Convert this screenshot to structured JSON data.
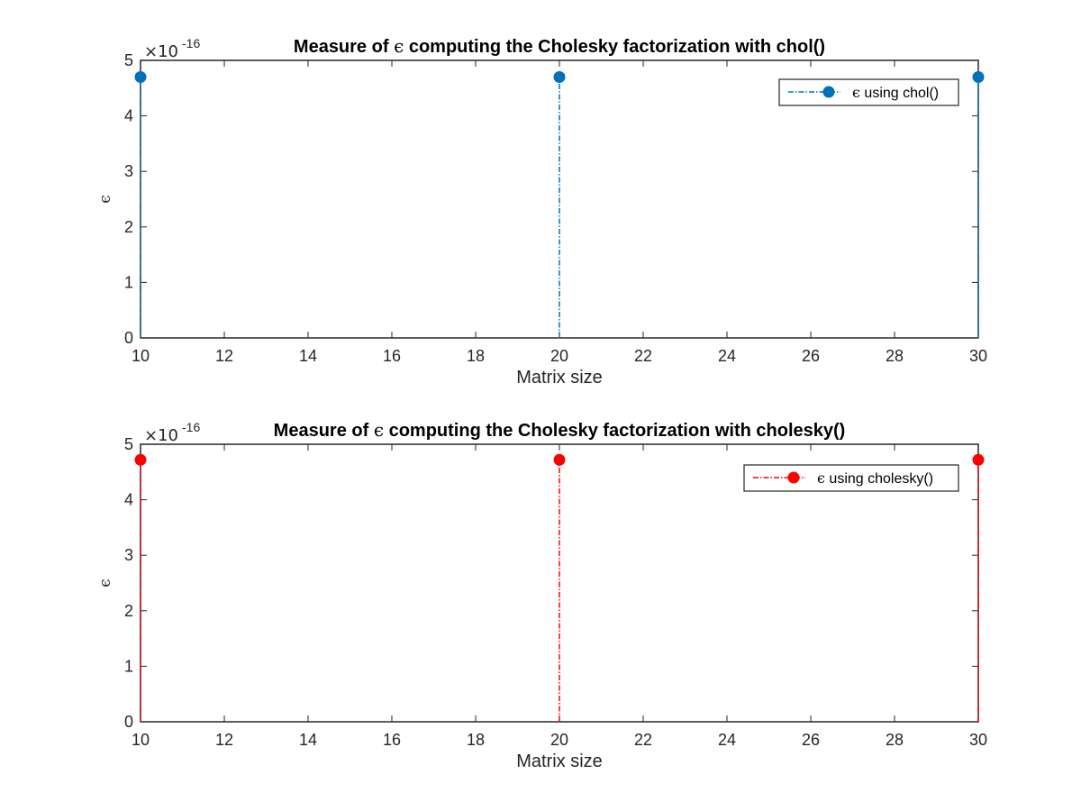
{
  "chart_data": [
    {
      "type": "stem",
      "title_prefix": "Measure of",
      "title_symbol": "ϵ",
      "title_suffix": "computing the Cholesky factorization with chol()",
      "xlabel": "Matrix size",
      "ylabel": "ϵ",
      "xlim": [
        10,
        30
      ],
      "ylim": [
        0,
        5
      ],
      "xticks": [
        10,
        12,
        14,
        16,
        18,
        20,
        22,
        24,
        26,
        28,
        30
      ],
      "yticks": [
        0,
        1,
        2,
        3,
        4,
        5
      ],
      "exponent_base": "×10",
      "exponent_power": "-16",
      "grid": false,
      "legend_position": "top-right",
      "series": [
        {
          "legend_symbol": "ϵ",
          "legend_text": "using chol()",
          "color": "#0072BD",
          "line_style": "dash-dot",
          "marker": "filled-circle",
          "x": [
            10,
            20,
            30
          ],
          "y": [
            4.7,
            4.7,
            4.7
          ]
        }
      ]
    },
    {
      "type": "stem",
      "title_prefix": "Measure of",
      "title_symbol": "ϵ",
      "title_suffix": "computing the Cholesky factorization with cholesky()",
      "xlabel": "Matrix size",
      "ylabel": "ϵ",
      "xlim": [
        10,
        30
      ],
      "ylim": [
        0,
        5
      ],
      "xticks": [
        10,
        12,
        14,
        16,
        18,
        20,
        22,
        24,
        26,
        28,
        30
      ],
      "yticks": [
        0,
        1,
        2,
        3,
        4,
        5
      ],
      "exponent_base": "×10",
      "exponent_power": "-16",
      "grid": false,
      "legend_position": "top-right",
      "series": [
        {
          "legend_symbol": "ϵ",
          "legend_text": "using cholesky()",
          "color": "#FF0000",
          "line_style": "dash-dot",
          "marker": "filled-circle",
          "x": [
            10,
            20,
            30
          ],
          "y": [
            4.72,
            4.72,
            4.72
          ]
        }
      ]
    }
  ]
}
